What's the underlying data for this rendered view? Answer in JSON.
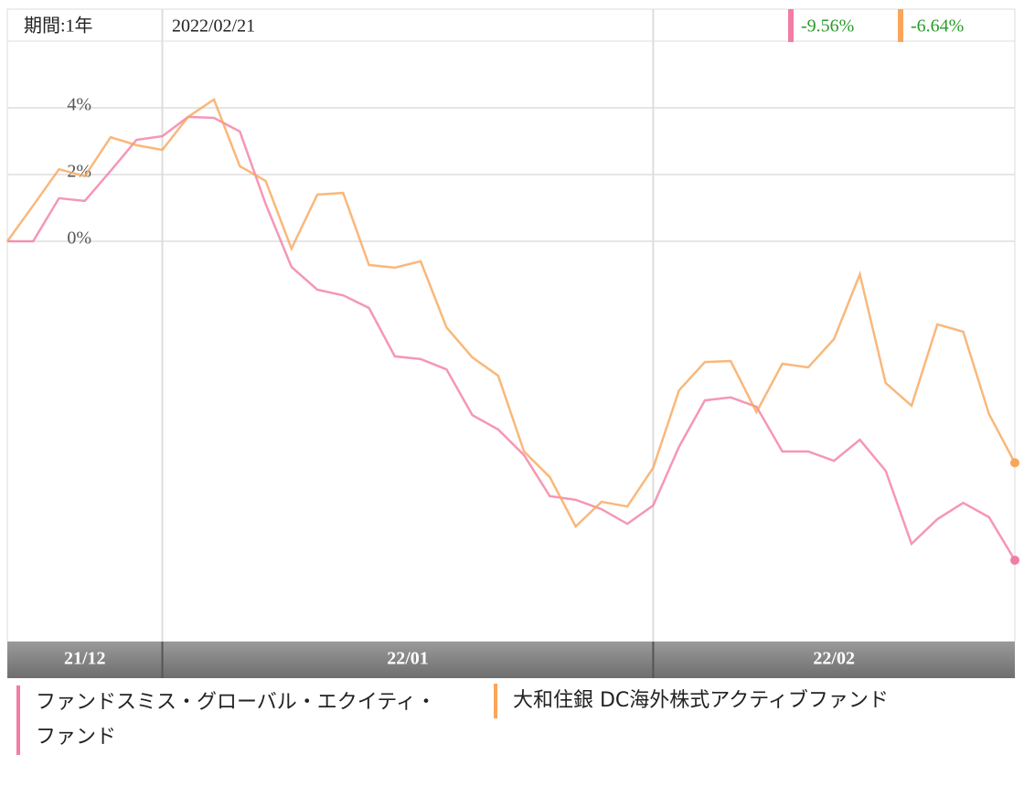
{
  "chart_data": {
    "type": "line",
    "period_label": "期間:1年",
    "date": "2022/02/21",
    "categories": [
      "21/12",
      null,
      null,
      null,
      null,
      null,
      "22/01",
      null,
      null,
      null,
      null,
      null,
      null,
      null,
      null,
      null,
      null,
      null,
      null,
      null,
      null,
      null,
      null,
      null,
      null,
      "22/02",
      null,
      null,
      null,
      null,
      null,
      null,
      null,
      null,
      null,
      null,
      null,
      null,
      null,
      null
    ],
    "ylim": [
      -12,
      6
    ],
    "yticks": [
      {
        "value": 0,
        "label": "0%"
      },
      {
        "value": 2,
        "label": "2%"
      },
      {
        "value": 4,
        "label": "4%"
      }
    ],
    "grid": true,
    "series": [
      {
        "name": "ファンドスミス・グローバル・エクイティ・ファンド",
        "color": "#f27da4",
        "last_label": "-9.56%",
        "values": [
          0,
          0,
          1.29,
          1.21,
          2.11,
          3.04,
          3.15,
          3.73,
          3.7,
          3.29,
          1.12,
          -0.77,
          -1.45,
          -1.62,
          -2.0,
          -3.45,
          -3.53,
          -3.84,
          -5.21,
          -5.64,
          -6.41,
          -7.64,
          -7.75,
          -8.03,
          -8.47,
          -7.92,
          -6.16,
          -4.77,
          -4.68,
          -4.96,
          -6.3,
          -6.3,
          -6.58,
          -5.95,
          -6.88,
          -9.07,
          -8.33,
          -7.84,
          -8.27,
          -9.56
        ]
      },
      {
        "name": "大和住銀 DC海外株式アクティブファンド",
        "color": "#f8a65a",
        "last_label": "-6.64%",
        "values": [
          0,
          1.07,
          2.16,
          1.95,
          3.12,
          2.88,
          2.74,
          3.73,
          4.25,
          2.25,
          1.81,
          -0.22,
          1.4,
          1.45,
          -0.71,
          -0.79,
          -0.6,
          -2.58,
          -3.48,
          -4.03,
          -6.3,
          -7.07,
          -8.55,
          -7.81,
          -7.95,
          -6.79,
          -4.47,
          -3.62,
          -3.59,
          -5.12,
          -3.67,
          -3.78,
          -2.93,
          -0.99,
          -4.25,
          -4.93,
          -2.49,
          -2.71,
          -5.18,
          -6.64
        ]
      }
    ]
  }
}
